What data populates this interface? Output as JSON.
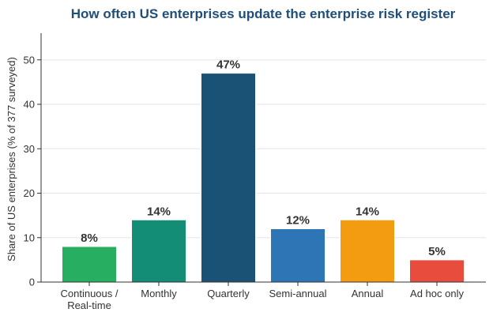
{
  "chart_data": {
    "type": "bar",
    "title": "How often US enterprises update the enterprise risk register",
    "ylabel": "Share of US enterprises (% of 377 surveyed)",
    "xlabel": "",
    "ylim": [
      0,
      56
    ],
    "yticks": [
      0,
      10,
      20,
      30,
      40,
      50
    ],
    "grid": true,
    "categories": [
      [
        "Continuous /",
        "Real-time"
      ],
      [
        "Monthly"
      ],
      [
        "Quarterly"
      ],
      [
        "Semi-annual"
      ],
      [
        "Annual"
      ],
      [
        "Ad hoc only"
      ]
    ],
    "values": [
      8,
      14,
      47,
      12,
      14,
      5
    ],
    "data_labels": [
      "8%",
      "14%",
      "47%",
      "12%",
      "14%",
      "5%"
    ],
    "colors": [
      "#27ae60",
      "#138d75",
      "#1a5276",
      "#2e75b6",
      "#f39c12",
      "#e74c3c"
    ],
    "title_color": "#1f4e79"
  }
}
